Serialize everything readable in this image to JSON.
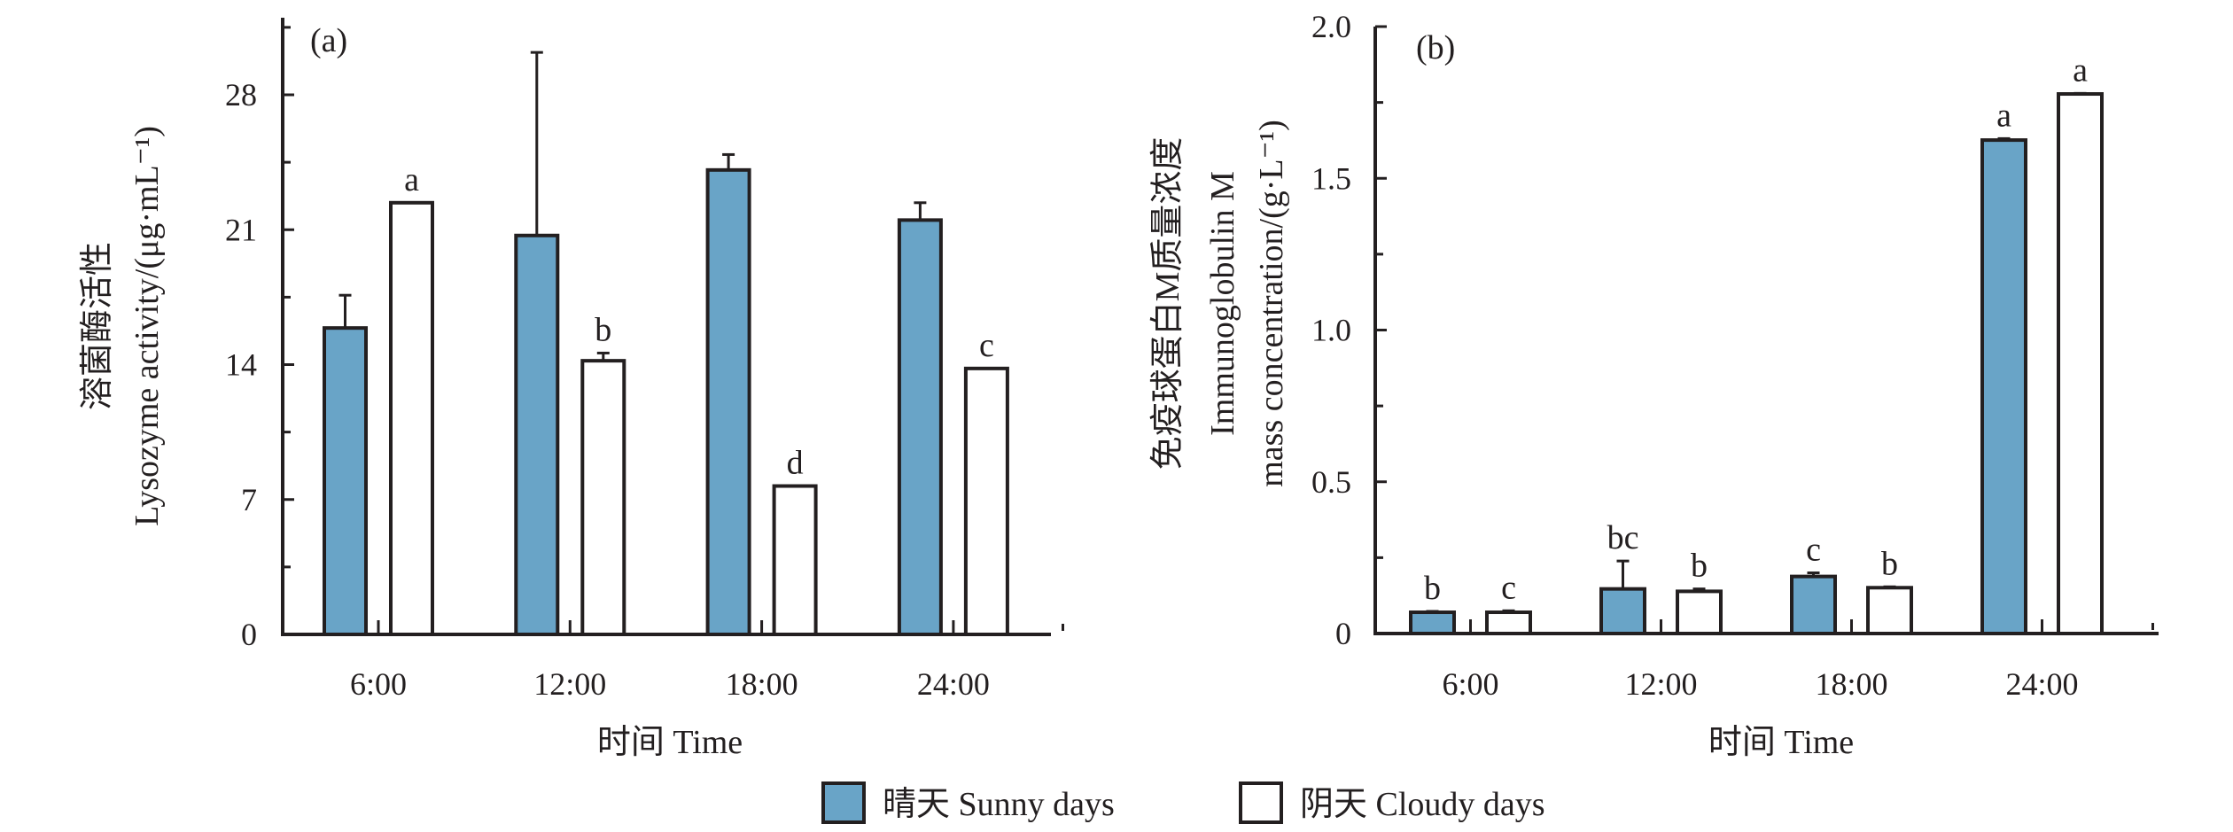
{
  "legend": {
    "items": [
      {
        "key": "sunny",
        "label": "晴天 Sunny days",
        "color": "#69a4c7"
      },
      {
        "key": "cloudy",
        "label": "阴天 Cloudy days",
        "color": "#ffffff"
      }
    ],
    "placement": "bottom-center"
  },
  "chart_data": [
    {
      "type": "bar",
      "panel_label": "(a)",
      "title": "",
      "xlabel": "时间 Time",
      "ylabel_lines": [
        "溶菌酶活性",
        "Lysozyme activity/(μg·mL⁻¹)"
      ],
      "ylim": [
        0,
        32
      ],
      "yticks": [
        0,
        7,
        14,
        21,
        28
      ],
      "ytick_labels": [
        "0",
        "7",
        "14",
        "21",
        "28"
      ],
      "y_minor_step": 3.5,
      "grid": false,
      "categories": [
        "6:00",
        "12:00",
        "18:00",
        "24:00"
      ],
      "series": [
        {
          "name": "晴天 Sunny days",
          "key": "sunny",
          "values": [
            15.9,
            20.7,
            24.1,
            21.5
          ],
          "errors": [
            1.7,
            9.5,
            0.8,
            0.9
          ],
          "letters": [
            "",
            "",
            "",
            ""
          ]
        },
        {
          "name": "阴天 Cloudy days",
          "key": "cloudy",
          "values": [
            22.4,
            14.2,
            7.7,
            13.8
          ],
          "errors": [
            0,
            0.4,
            0,
            0
          ],
          "letters": [
            "a",
            "b",
            "d",
            "c"
          ]
        }
      ]
    },
    {
      "type": "bar",
      "panel_label": "(b)",
      "title": "",
      "xlabel": "时间 Time",
      "ylabel_lines": [
        "免疫球蛋白M质量浓度",
        "Immunoglobulin M",
        "mass concentration/(g·L⁻¹)"
      ],
      "ylim": [
        0,
        2.0
      ],
      "yticks": [
        0,
        0.5,
        1.0,
        1.5,
        2.0
      ],
      "ytick_labels": [
        "0",
        "0.5",
        "1.0",
        "1.5",
        "2.0"
      ],
      "y_minor_step": 0.25,
      "grid": false,
      "categories": [
        "6:00",
        "12:00",
        "18:00",
        "24:00"
      ],
      "series": [
        {
          "name": "晴天 Sunny days",
          "key": "sunny",
          "values": [
            0.07,
            0.147,
            0.188,
            1.626
          ],
          "errors": [
            0.003,
            0.092,
            0.012,
            0.005
          ],
          "letters": [
            "b",
            "bc",
            "c",
            "a"
          ]
        },
        {
          "name": "阴天 Cloudy days",
          "key": "cloudy",
          "values": [
            0.07,
            0.139,
            0.151,
            1.778
          ],
          "errors": [
            0.005,
            0.008,
            0.003,
            0.002
          ],
          "letters": [
            "c",
            "b",
            "b",
            "a"
          ]
        }
      ]
    }
  ]
}
